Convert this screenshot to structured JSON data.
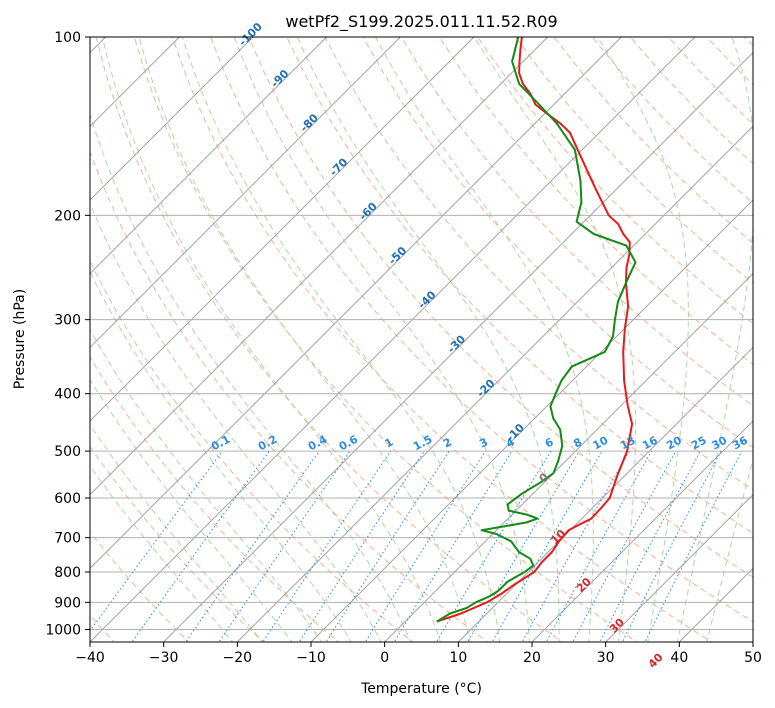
{
  "chart_data": {
    "type": "line",
    "chart_style": "skew-t log-p diagram",
    "title": "wetPf2_S199.2025.011.11.52.R09",
    "xlabel": "Temperature (°C)",
    "ylabel": "Pressure (hPa)",
    "xlim": [
      -40,
      50
    ],
    "ylim": [
      1050,
      100
    ],
    "y_scale": "log",
    "grid": true,
    "x_ticks": [
      -40,
      -30,
      -20,
      -10,
      0,
      10,
      20,
      30,
      40,
      50
    ],
    "y_ticks": [
      100,
      200,
      300,
      400,
      500,
      600,
      700,
      800,
      900,
      1000
    ],
    "isotherm_labels": [
      "-100",
      "-90",
      "-80",
      "-70",
      "-60",
      "-50",
      "-40",
      "-30",
      "-20",
      "-10",
      "0",
      "10",
      "20",
      "30",
      "40"
    ],
    "mixing_ratio_labels": [
      "0.1",
      "0.2",
      "0.4",
      "0.6",
      "1",
      "1.5",
      "2",
      "3",
      "4",
      "6",
      "8",
      "10",
      "13",
      "16",
      "20",
      "25",
      "30",
      "36"
    ],
    "colors": {
      "temperature": "#e41a1c",
      "dewpoint": "#138a13",
      "grid": "#b0b0b0",
      "isotherm": "#999999",
      "dry_adiabat": "#f4a582",
      "moist_adiabat": "#a6d3a0",
      "mixing_ratio": "#2b8ce0",
      "isotherm_label_cold": "#1f6fb4",
      "isotherm_label_warm": "#d62728"
    },
    "series": [
      {
        "key": "temperature",
        "points": [
          {
            "t": 4.3,
            "p": 970
          },
          {
            "t": 6.5,
            "p": 940
          },
          {
            "t": 8.5,
            "p": 900
          },
          {
            "t": 9.3,
            "p": 870
          },
          {
            "t": 9.8,
            "p": 840
          },
          {
            "t": 10.8,
            "p": 800
          },
          {
            "t": 10.5,
            "p": 770
          },
          {
            "t": 10.5,
            "p": 740
          },
          {
            "t": 10.0,
            "p": 710
          },
          {
            "t": 9.8,
            "p": 680
          },
          {
            "t": 10.5,
            "p": 665
          },
          {
            "t": 11.3,
            "p": 650
          },
          {
            "t": 11.2,
            "p": 625
          },
          {
            "t": 11.0,
            "p": 600
          },
          {
            "t": 9.0,
            "p": 550
          },
          {
            "t": 7.0,
            "p": 500
          },
          {
            "t": 4.0,
            "p": 450
          },
          {
            "t": 1.0,
            "p": 420
          },
          {
            "t": -3.0,
            "p": 380
          },
          {
            "t": -7.0,
            "p": 340
          },
          {
            "t": -10.0,
            "p": 310
          },
          {
            "t": -12.5,
            "p": 285
          },
          {
            "t": -16.0,
            "p": 260
          },
          {
            "t": -18.0,
            "p": 245
          },
          {
            "t": -19.5,
            "p": 232
          },
          {
            "t": -21.0,
            "p": 222
          },
          {
            "t": -23.0,
            "p": 215
          },
          {
            "t": -25.0,
            "p": 207
          },
          {
            "t": -27.5,
            "p": 200
          },
          {
            "t": -33.0,
            "p": 180
          },
          {
            "t": -39.0,
            "p": 160
          },
          {
            "t": -44.0,
            "p": 145
          },
          {
            "t": -46.5,
            "p": 140
          },
          {
            "t": -49.5,
            "p": 135
          },
          {
            "t": -52.5,
            "p": 130
          },
          {
            "t": -54.5,
            "p": 125
          },
          {
            "t": -57.0,
            "p": 120
          },
          {
            "t": -59.0,
            "p": 115
          },
          {
            "t": -60.5,
            "p": 110
          },
          {
            "t": -62.0,
            "p": 105
          },
          {
            "t": -63.5,
            "p": 100
          }
        ]
      },
      {
        "key": "dewpoint",
        "points": [
          {
            "t": 4.3,
            "p": 970
          },
          {
            "t": 5.0,
            "p": 940
          },
          {
            "t": 6.5,
            "p": 920
          },
          {
            "t": 7.0,
            "p": 900
          },
          {
            "t": 8.0,
            "p": 880
          },
          {
            "t": 8.5,
            "p": 860
          },
          {
            "t": 8.5,
            "p": 830
          },
          {
            "t": 9.5,
            "p": 800
          },
          {
            "t": 9.8,
            "p": 780
          },
          {
            "t": 8.5,
            "p": 760
          },
          {
            "t": 6.0,
            "p": 740
          },
          {
            "t": 3.5,
            "p": 710
          },
          {
            "t": 0.5,
            "p": 690
          },
          {
            "t": -2.0,
            "p": 680
          },
          {
            "t": 0.5,
            "p": 670
          },
          {
            "t": 3.0,
            "p": 660
          },
          {
            "t": 4.0,
            "p": 650
          },
          {
            "t": 2.0,
            "p": 640
          },
          {
            "t": -1.0,
            "p": 630
          },
          {
            "t": -2.0,
            "p": 615
          },
          {
            "t": -1.5,
            "p": 590
          },
          {
            "t": -0.5,
            "p": 565
          },
          {
            "t": 0.0,
            "p": 545
          },
          {
            "t": -1.0,
            "p": 520
          },
          {
            "t": -2.5,
            "p": 490
          },
          {
            "t": -5.0,
            "p": 460
          },
          {
            "t": -7.5,
            "p": 440
          },
          {
            "t": -9.5,
            "p": 420
          },
          {
            "t": -10.5,
            "p": 400
          },
          {
            "t": -11.5,
            "p": 380
          },
          {
            "t": -12.0,
            "p": 360
          },
          {
            "t": -9.5,
            "p": 340
          },
          {
            "t": -10.5,
            "p": 320
          },
          {
            "t": -12.5,
            "p": 300
          },
          {
            "t": -14.5,
            "p": 280
          },
          {
            "t": -16.0,
            "p": 260
          },
          {
            "t": -17.5,
            "p": 240
          },
          {
            "t": -21.0,
            "p": 225
          },
          {
            "t": -27.0,
            "p": 215
          },
          {
            "t": -31.0,
            "p": 205
          },
          {
            "t": -33.0,
            "p": 190
          },
          {
            "t": -36.0,
            "p": 175
          },
          {
            "t": -41.0,
            "p": 155
          },
          {
            "t": -47.0,
            "p": 140
          },
          {
            "t": -52.0,
            "p": 130
          },
          {
            "t": -57.5,
            "p": 120
          },
          {
            "t": -61.5,
            "p": 110
          },
          {
            "t": -64.0,
            "p": 100
          }
        ]
      }
    ]
  }
}
